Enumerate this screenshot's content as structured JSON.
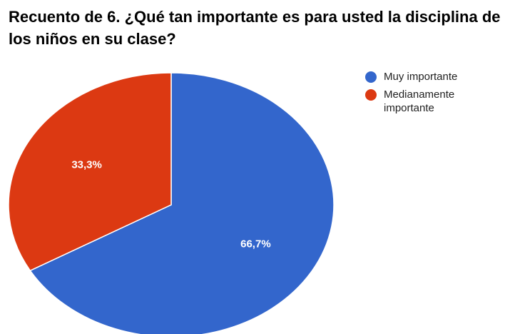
{
  "chart_data": {
    "type": "pie",
    "title": "Recuento de 6. ¿Qué tan importante es para usted la disciplina de los niños en su clase?",
    "categories": [
      "Muy importante",
      "Medianamente importante"
    ],
    "values": [
      66.7,
      33.3
    ],
    "value_labels": [
      "66,7%",
      "33,3%"
    ],
    "colors": [
      "#3366cc",
      "#dc3912"
    ],
    "legend": "right"
  }
}
